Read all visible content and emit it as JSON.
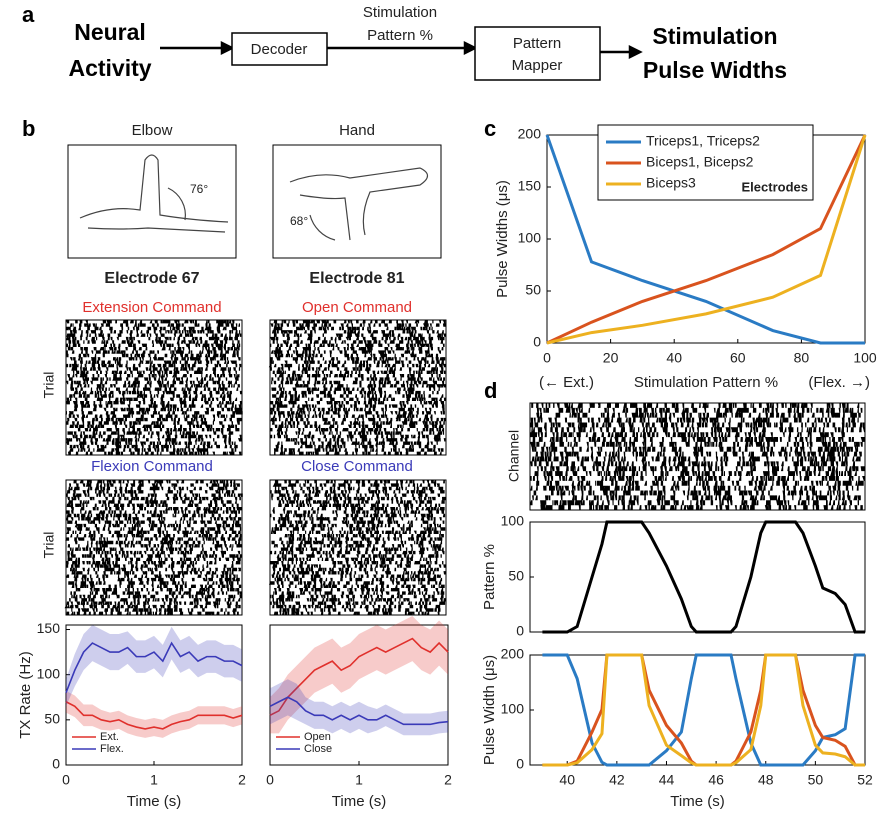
{
  "panel_labels": [
    "a",
    "b",
    "c",
    "d"
  ],
  "diagram": {
    "input": [
      "Neural",
      "Activity"
    ],
    "decoder": "Decoder",
    "signal": [
      "Stimulation",
      "Pattern %"
    ],
    "mapper": [
      "Pattern",
      "Mapper"
    ],
    "output": [
      "Stimulation",
      "Pulse Widths"
    ]
  },
  "panel_b": {
    "columns": [
      {
        "joint": "Elbow",
        "angle": "76°",
        "electrode": "Electrode 67",
        "commands": [
          "Extension Command",
          "Flexion Command"
        ]
      },
      {
        "joint": "Hand",
        "angle": "68°",
        "electrode": "Electrode 81",
        "commands": [
          "Open Command",
          "Close Command"
        ]
      }
    ],
    "command_colors": [
      "#e0302c",
      "#3a3ab8"
    ],
    "raster_label": "Trial"
  },
  "panel_d": {
    "raster_label": "Channel"
  },
  "chart_data": [
    {
      "type": "line",
      "x": [
        0,
        0.1,
        0.2,
        0.3,
        0.4,
        0.5,
        0.6,
        0.7,
        0.8,
        0.9,
        1,
        1.1,
        1.2,
        1.3,
        1.4,
        1.5,
        1.6,
        1.7,
        1.8,
        1.9,
        2
      ],
      "series": [
        {
          "name": "Ext.",
          "color": "#e0302c",
          "values": [
            70,
            65,
            55,
            55,
            50,
            48,
            50,
            45,
            42,
            40,
            42,
            40,
            45,
            48,
            50,
            55,
            55,
            55,
            55,
            52,
            55
          ],
          "errors": [
            12,
            12,
            12,
            12,
            11,
            10,
            10,
            10,
            10,
            10,
            10,
            10,
            10,
            10,
            10,
            10,
            10,
            10,
            10,
            10,
            10
          ]
        },
        {
          "name": "Flex.",
          "color": "#3a3ab8",
          "values": [
            80,
            105,
            125,
            135,
            130,
            125,
            125,
            130,
            120,
            120,
            125,
            115,
            135,
            120,
            125,
            115,
            120,
            120,
            115,
            115,
            110
          ],
          "errors": [
            15,
            18,
            20,
            20,
            20,
            20,
            20,
            18,
            18,
            18,
            18,
            18,
            18,
            18,
            18,
            18,
            18,
            18,
            18,
            18,
            18
          ]
        }
      ],
      "xlim": [
        0,
        2
      ],
      "xticks": [
        0,
        1,
        2
      ],
      "ylim": [
        0,
        155
      ],
      "yticks": [
        0,
        50,
        100,
        150
      ],
      "xlabel": "Time (s)",
      "ylabel": "TX Rate (Hz)",
      "legend": "lower left"
    },
    {
      "type": "line",
      "x": [
        0,
        0.1,
        0.2,
        0.3,
        0.4,
        0.5,
        0.6,
        0.7,
        0.8,
        0.9,
        1,
        1.1,
        1.2,
        1.3,
        1.4,
        1.5,
        1.6,
        1.7,
        1.8,
        1.9,
        2
      ],
      "series": [
        {
          "name": "Open",
          "color": "#e0302c",
          "values": [
            55,
            60,
            75,
            85,
            95,
            105,
            110,
            115,
            105,
            110,
            120,
            125,
            130,
            125,
            130,
            135,
            140,
            130,
            125,
            135,
            125
          ],
          "errors": [
            20,
            25,
            25,
            25,
            25,
            25,
            25,
            25,
            25,
            25,
            25,
            25,
            25,
            25,
            25,
            25,
            25,
            25,
            25,
            25,
            25
          ]
        },
        {
          "name": "Close",
          "color": "#3a3ab8",
          "values": [
            65,
            70,
            75,
            70,
            60,
            55,
            55,
            50,
            55,
            50,
            55,
            50,
            50,
            55,
            50,
            45,
            45,
            45,
            45,
            47,
            48
          ],
          "errors": [
            20,
            20,
            20,
            20,
            15,
            15,
            15,
            15,
            15,
            15,
            15,
            15,
            12,
            12,
            12,
            12,
            12,
            12,
            12,
            12,
            12
          ]
        }
      ],
      "xlim": [
        0,
        2
      ],
      "xticks": [
        0,
        1,
        2
      ],
      "ylim": [
        0,
        155
      ],
      "xlabel": "Time (s)",
      "legend": "lower left"
    },
    {
      "type": "line",
      "x": [
        0,
        14,
        30,
        50,
        71,
        86,
        100
      ],
      "series": [
        {
          "name": "Triceps1, Triceps2",
          "color": "#2a7bc4",
          "values": [
            200,
            78,
            60,
            40,
            12,
            0,
            0
          ]
        },
        {
          "name": "Biceps1, Biceps2",
          "color": "#d9531e",
          "values": [
            0,
            20,
            40,
            60,
            85,
            110,
            200
          ]
        },
        {
          "name": "Biceps3",
          "color": "#edb120",
          "values": [
            0,
            10,
            17,
            28,
            44,
            65,
            200
          ]
        }
      ],
      "xlim": [
        0,
        100
      ],
      "xticks": [
        0,
        20,
        40,
        60,
        80,
        100
      ],
      "ylim": [
        0,
        200
      ],
      "yticks": [
        0,
        50,
        100,
        150,
        200
      ],
      "xlabel": "Stimulation Pattern %",
      "ylabel": "Pulse Widths (μs)",
      "annotations": [
        "(← Ext.)",
        "(Flex. →)"
      ],
      "legend": "upper center",
      "legend_title": "Electrodes"
    },
    {
      "type": "line",
      "x": [
        39,
        40,
        40.4,
        41,
        41.4,
        41.6,
        43,
        43.3,
        44,
        44.6,
        45,
        45.2,
        46.6,
        46.8,
        47.4,
        47.8,
        48,
        49.2,
        49.5,
        50,
        50.3,
        50.8,
        51.2,
        51.6,
        52
      ],
      "series": [
        {
          "color": "#000000",
          "values": [
            0,
            0,
            5,
            50,
            80,
            100,
            100,
            90,
            60,
            30,
            5,
            0,
            0,
            5,
            50,
            90,
            100,
            100,
            90,
            60,
            40,
            35,
            25,
            0,
            0
          ]
        }
      ],
      "xlim": [
        38.5,
        52
      ],
      "ylim": [
        0,
        100
      ],
      "yticks": [
        0,
        50,
        100
      ],
      "ylabel": "Pattern %"
    },
    {
      "type": "line",
      "x": [
        39,
        40,
        40.4,
        41,
        41.4,
        41.6,
        43,
        43.3,
        44,
        44.6,
        45,
        45.2,
        46.6,
        46.8,
        47.4,
        47.8,
        48,
        49.2,
        49.5,
        50,
        50.3,
        50.8,
        51.2,
        51.6,
        52
      ],
      "series": [
        {
          "color": "#2a7bc4",
          "values": [
            200,
            200,
            157,
            40,
            5,
            0,
            0,
            0,
            26,
            60,
            157,
            200,
            200,
            157,
            40,
            0,
            0,
            0,
            0,
            26,
            50,
            55,
            66,
            200,
            200
          ]
        },
        {
          "color": "#d9531e",
          "values": [
            0,
            0,
            7,
            60,
            101,
            200,
            200,
            136,
            72,
            40,
            7,
            0,
            0,
            7,
            60,
            136,
            200,
            200,
            136,
            72,
            50,
            45,
            34,
            0,
            0
          ]
        },
        {
          "color": "#edb120",
          "values": [
            0,
            0,
            4,
            28,
            57,
            200,
            200,
            108,
            36,
            17,
            4,
            0,
            0,
            4,
            28,
            108,
            200,
            200,
            108,
            36,
            22,
            20,
            15,
            0,
            0
          ]
        }
      ],
      "xlim": [
        38.5,
        52
      ],
      "xticks": [
        40,
        42,
        44,
        46,
        48,
        50,
        52
      ],
      "ylim": [
        0,
        200
      ],
      "yticks": [
        0,
        100,
        200
      ],
      "xlabel": "Time (s)",
      "ylabel": "Pulse Width (μs)"
    }
  ]
}
